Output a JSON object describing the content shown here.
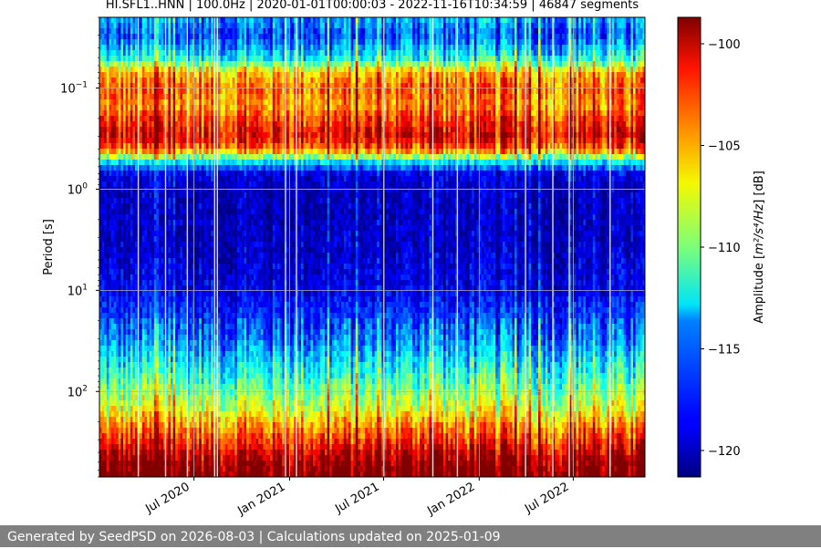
{
  "chart_data": {
    "type": "heatmap",
    "title": "HI.SFL1..HNN | 100.0Hz | 2020-01-01T00:00:03 - 2022-11-16T10:34:59 | 46847 segments",
    "ylabel": "Period [s]",
    "xlabel": "",
    "y_scale": "log",
    "y_inverted": true,
    "ylim": [
      0.02,
      700
    ],
    "y_ticks": [
      {
        "value": 0.1,
        "base": "10",
        "exp": "−1"
      },
      {
        "value": 1,
        "base": "10",
        "exp": "0"
      },
      {
        "value": 10,
        "base": "10",
        "exp": "1"
      },
      {
        "value": 100,
        "base": "10",
        "exp": "2"
      }
    ],
    "x_range": [
      "2020-01-01",
      "2022-11-16"
    ],
    "x_ticks": [
      {
        "date": "2020-07-01",
        "label": "Jul 2020"
      },
      {
        "date": "2021-01-01",
        "label": "Jan 2021"
      },
      {
        "date": "2021-07-01",
        "label": "Jul 2021"
      },
      {
        "date": "2022-01-01",
        "label": "Jan 2022"
      },
      {
        "date": "2022-07-01",
        "label": "Jul 2022"
      }
    ],
    "grid": true,
    "colormap": "jet",
    "colorbar": {
      "label_prefix": "Amplitude [",
      "label_units": "m²/s⁴/Hz",
      "label_suffix": "] [dB]",
      "range": [
        -121.3,
        -98.7
      ],
      "ticks": [
        -100,
        -105,
        -110,
        -115,
        -120
      ],
      "tick_labels": [
        "−100",
        "−105",
        "−110",
        "−115",
        "−120"
      ]
    },
    "period_profile_db": [
      {
        "period": 0.02,
        "db": -115
      },
      {
        "period": 0.03,
        "db": -117
      },
      {
        "period": 0.05,
        "db": -113
      },
      {
        "period": 0.07,
        "db": -106
      },
      {
        "period": 0.1,
        "db": -104
      },
      {
        "period": 0.15,
        "db": -105
      },
      {
        "period": 0.2,
        "db": -103
      },
      {
        "period": 0.3,
        "db": -101
      },
      {
        "period": 0.4,
        "db": -104
      },
      {
        "period": 0.55,
        "db": -114
      },
      {
        "period": 0.7,
        "db": -119
      },
      {
        "period": 1,
        "db": -120
      },
      {
        "period": 3,
        "db": -120
      },
      {
        "period": 10,
        "db": -119
      },
      {
        "period": 30,
        "db": -116
      },
      {
        "period": 70,
        "db": -112
      },
      {
        "period": 150,
        "db": -108
      },
      {
        "period": 250,
        "db": -104
      },
      {
        "period": 500,
        "db": -99
      },
      {
        "period": 700,
        "db": -98
      }
    ]
  },
  "footer": {
    "text": "Generated by SeedPSD on 2026-08-03 | Calculations updated on 2025-01-09"
  }
}
